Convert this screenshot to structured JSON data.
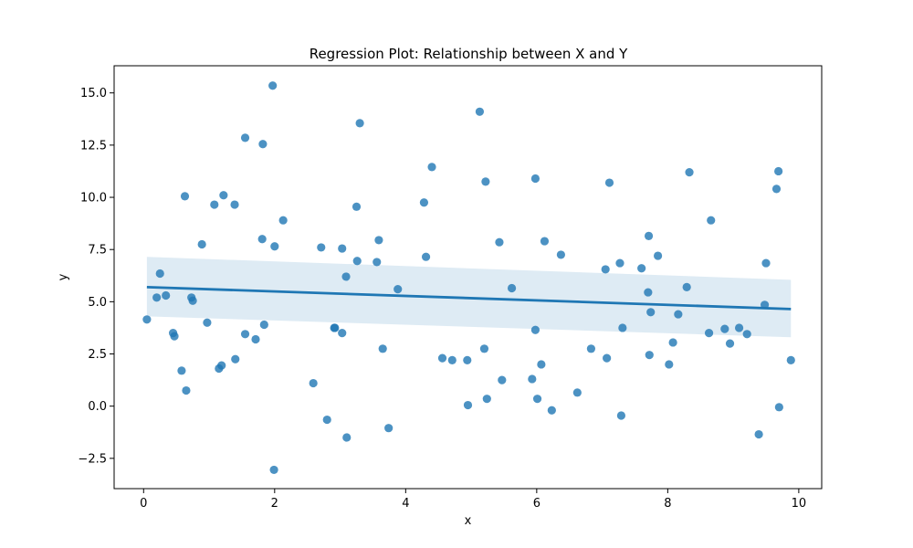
{
  "chart_data": {
    "type": "scatter",
    "title": "Regression Plot: Relationship between X and Y",
    "xlabel": "x",
    "ylabel": "y",
    "xlim": [
      -0.45,
      10.35
    ],
    "ylim": [
      -3.95,
      16.3
    ],
    "xticks": [
      0,
      2,
      4,
      6,
      8,
      10
    ],
    "yticks": [
      -2.5,
      0.0,
      2.5,
      5.0,
      7.5,
      10.0,
      12.5,
      15.0
    ],
    "ytick_labels": [
      "−2.5",
      "0.0",
      "2.5",
      "5.0",
      "7.5",
      "10.0",
      "12.5",
      "15.0"
    ],
    "grid": false,
    "colors": {
      "points": "#1f77b4",
      "line": "#1f77b4",
      "band": "#1f77b4"
    },
    "series": [
      {
        "values": [
          [
            0.05,
            4.15
          ],
          [
            0.2,
            5.2
          ],
          [
            0.25,
            6.35
          ],
          [
            0.34,
            5.3
          ],
          [
            0.45,
            3.5
          ],
          [
            0.47,
            3.35
          ],
          [
            0.58,
            1.7
          ],
          [
            0.63,
            10.05
          ],
          [
            0.65,
            0.75
          ],
          [
            0.73,
            5.2
          ],
          [
            0.75,
            5.05
          ],
          [
            0.89,
            7.75
          ],
          [
            0.97,
            4.0
          ],
          [
            1.08,
            9.65
          ],
          [
            1.15,
            1.8
          ],
          [
            1.19,
            1.95
          ],
          [
            1.22,
            10.1
          ],
          [
            1.39,
            9.65
          ],
          [
            1.4,
            2.25
          ],
          [
            1.55,
            3.45
          ],
          [
            1.55,
            12.85
          ],
          [
            1.71,
            3.2
          ],
          [
            1.81,
            8.0
          ],
          [
            1.82,
            12.55
          ],
          [
            1.84,
            3.9
          ],
          [
            1.97,
            15.35
          ],
          [
            1.99,
            -3.05
          ],
          [
            2.0,
            7.65
          ],
          [
            2.13,
            8.9
          ],
          [
            2.59,
            1.1
          ],
          [
            2.71,
            7.6
          ],
          [
            2.8,
            -0.65
          ],
          [
            2.91,
            3.75
          ],
          [
            2.92,
            3.75
          ],
          [
            3.03,
            3.5
          ],
          [
            3.03,
            7.55
          ],
          [
            3.09,
            6.2
          ],
          [
            3.1,
            -1.5
          ],
          [
            3.25,
            9.55
          ],
          [
            3.26,
            6.95
          ],
          [
            3.3,
            13.55
          ],
          [
            3.56,
            6.9
          ],
          [
            3.59,
            7.95
          ],
          [
            3.65,
            2.75
          ],
          [
            3.74,
            -1.05
          ],
          [
            3.88,
            5.6
          ],
          [
            4.28,
            9.75
          ],
          [
            4.31,
            7.15
          ],
          [
            4.4,
            11.45
          ],
          [
            4.56,
            2.3
          ],
          [
            4.71,
            2.2
          ],
          [
            4.94,
            2.2
          ],
          [
            4.95,
            0.05
          ],
          [
            5.13,
            14.1
          ],
          [
            5.2,
            2.75
          ],
          [
            5.22,
            10.75
          ],
          [
            5.24,
            0.35
          ],
          [
            5.43,
            7.85
          ],
          [
            5.47,
            1.25
          ],
          [
            5.62,
            5.65
          ],
          [
            5.93,
            1.3
          ],
          [
            5.98,
            3.65
          ],
          [
            5.98,
            10.9
          ],
          [
            6.01,
            0.35
          ],
          [
            6.07,
            2.0
          ],
          [
            6.12,
            7.9
          ],
          [
            6.23,
            -0.2
          ],
          [
            6.37,
            7.25
          ],
          [
            6.62,
            0.65
          ],
          [
            6.83,
            2.75
          ],
          [
            7.05,
            6.55
          ],
          [
            7.07,
            2.3
          ],
          [
            7.11,
            10.7
          ],
          [
            7.27,
            6.85
          ],
          [
            7.29,
            -0.45
          ],
          [
            7.31,
            3.75
          ],
          [
            7.6,
            6.6
          ],
          [
            7.7,
            5.45
          ],
          [
            7.71,
            8.15
          ],
          [
            7.72,
            2.45
          ],
          [
            7.74,
            4.5
          ],
          [
            7.85,
            7.2
          ],
          [
            8.02,
            2.0
          ],
          [
            8.08,
            3.05
          ],
          [
            8.16,
            4.4
          ],
          [
            8.29,
            5.7
          ],
          [
            8.33,
            11.2
          ],
          [
            8.63,
            3.5
          ],
          [
            8.66,
            8.9
          ],
          [
            8.87,
            3.7
          ],
          [
            8.95,
            3.0
          ],
          [
            9.09,
            3.75
          ],
          [
            9.21,
            3.45
          ],
          [
            9.39,
            -1.35
          ],
          [
            9.48,
            4.85
          ],
          [
            9.5,
            6.85
          ],
          [
            9.66,
            10.4
          ],
          [
            9.69,
            11.25
          ],
          [
            9.7,
            -0.05
          ],
          [
            9.88,
            2.2
          ]
        ]
      }
    ],
    "regression": {
      "x": [
        0.05,
        9.88
      ],
      "y": [
        5.7,
        4.65
      ],
      "ci_lower": [
        4.3,
        3.3
      ],
      "ci_upper": [
        7.15,
        6.05
      ]
    }
  }
}
